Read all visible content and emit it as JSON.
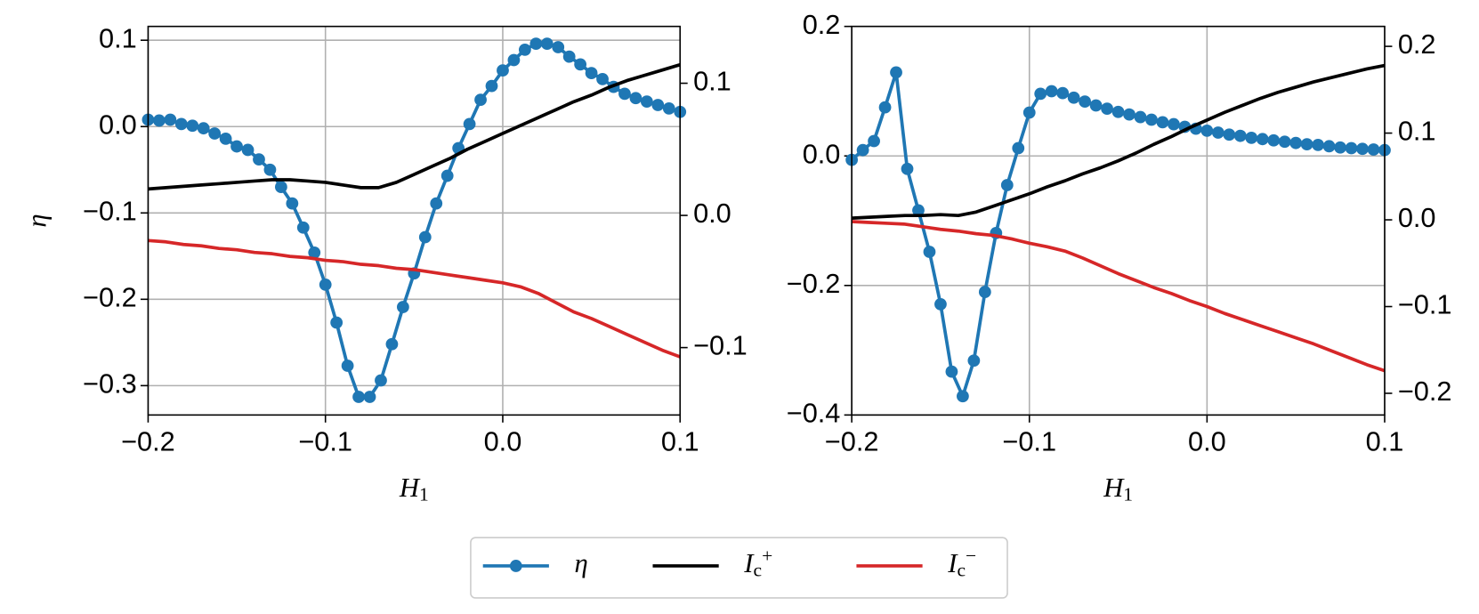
{
  "chart_data": [
    {
      "type": "line",
      "xlabel": "H1",
      "ylabel": "η",
      "xlim": [
        -0.2,
        0.1
      ],
      "ylim": [
        -0.334,
        0.116
      ],
      "y2lim": [
        -0.151,
        0.143
      ],
      "xticks": [
        {
          "value": -0.2,
          "label": "−0.2"
        },
        {
          "value": -0.1,
          "label": "−0.1"
        },
        {
          "value": 0,
          "label": "0.0"
        },
        0.1
      ],
      "yticks": [
        0.1,
        {
          "value": 0,
          "label": "0.0"
        },
        {
          "value": -0.1,
          "label": "−0.1"
        },
        {
          "value": -0.2,
          "label": "−0.2"
        },
        {
          "value": -0.3,
          "label": "−0.3"
        }
      ],
      "y2ticks": [
        0.1,
        {
          "value": 0,
          "label": "0.0"
        },
        {
          "value": -0.1,
          "label": "−0.1"
        }
      ],
      "grid": true,
      "legend": "lower center outside",
      "series": [
        {
          "name": "η",
          "color": "#1f77b4",
          "marker": true,
          "x": [
            -0.2,
            -0.19375,
            -0.1875,
            -0.18125,
            -0.175,
            -0.16875,
            -0.1625,
            -0.15625,
            -0.15,
            -0.14375,
            -0.1375,
            -0.13125,
            -0.125,
            -0.11875,
            -0.1125,
            -0.10625,
            -0.1,
            -0.09375,
            -0.0875,
            -0.08125,
            -0.075,
            -0.06875,
            -0.0625,
            -0.05625,
            -0.05,
            -0.04375,
            -0.0375,
            -0.03125,
            -0.025,
            -0.01875,
            -0.0125,
            -0.00625,
            0,
            0.00625,
            0.0125,
            0.01875,
            0.025,
            0.03125,
            0.0375,
            0.04375,
            0.05,
            0.05625,
            0.0625,
            0.06875,
            0.075,
            0.08125,
            0.0875,
            0.09375,
            0.1
          ],
          "values": [
            0.008,
            0.007,
            0.008,
            0.003,
            0.001,
            -0.002,
            -0.008,
            -0.014,
            -0.023,
            -0.027,
            -0.038,
            -0.05,
            -0.07,
            -0.089,
            -0.117,
            -0.146,
            -0.183,
            -0.227,
            -0.277,
            -0.313,
            -0.313,
            -0.294,
            -0.252,
            -0.209,
            -0.17,
            -0.128,
            -0.089,
            -0.057,
            -0.025,
            0.003,
            0.031,
            0.047,
            0.065,
            0.077,
            0.089,
            0.096,
            0.096,
            0.092,
            0.081,
            0.072,
            0.062,
            0.055,
            0.046,
            0.038,
            0.033,
            0.029,
            0.025,
            0.021,
            0.017
          ]
        },
        {
          "name": "Ic+",
          "color": "#000000",
          "axis": "y2",
          "x": [
            -0.2,
            -0.19,
            -0.18,
            -0.17,
            -0.16,
            -0.15,
            -0.14,
            -0.13,
            -0.12,
            -0.11,
            -0.1,
            -0.09,
            -0.08,
            -0.07,
            -0.06,
            -0.05,
            -0.04,
            -0.03,
            -0.02,
            -0.01,
            0,
            0.01,
            0.02,
            0.03,
            0.04,
            0.05,
            0.06,
            0.07,
            0.08,
            0.09,
            0.1
          ],
          "values": [
            0.02,
            0.021,
            0.022,
            0.023,
            0.024,
            0.025,
            0.026,
            0.027,
            0.027,
            0.026,
            0.025,
            0.023,
            0.021,
            0.021,
            0.025,
            0.031,
            0.037,
            0.043,
            0.05,
            0.056,
            0.062,
            0.068,
            0.074,
            0.08,
            0.086,
            0.091,
            0.097,
            0.102,
            0.106,
            0.11,
            0.114
          ]
        },
        {
          "name": "Ic−",
          "color": "#d62728",
          "axis": "y2",
          "x": [
            -0.2,
            -0.19,
            -0.18,
            -0.17,
            -0.16,
            -0.15,
            -0.14,
            -0.13,
            -0.12,
            -0.11,
            -0.1,
            -0.09,
            -0.08,
            -0.07,
            -0.06,
            -0.05,
            -0.04,
            -0.03,
            -0.02,
            -0.01,
            0,
            0.01,
            0.02,
            0.03,
            0.04,
            0.05,
            0.06,
            0.07,
            0.08,
            0.09,
            0.1
          ],
          "values": [
            -0.019,
            -0.02,
            -0.022,
            -0.023,
            -0.025,
            -0.026,
            -0.028,
            -0.029,
            -0.031,
            -0.032,
            -0.034,
            -0.035,
            -0.037,
            -0.038,
            -0.04,
            -0.041,
            -0.043,
            -0.045,
            -0.047,
            -0.049,
            -0.051,
            -0.054,
            -0.059,
            -0.066,
            -0.073,
            -0.078,
            -0.084,
            -0.09,
            -0.096,
            -0.102,
            -0.107
          ]
        }
      ]
    },
    {
      "type": "line",
      "xlabel": "H1",
      "xlim": [
        -0.2,
        0.1
      ],
      "ylim": [
        -0.4,
        0.2
      ],
      "y2lim": [
        -0.225,
        0.223
      ],
      "xticks": [
        {
          "value": -0.2,
          "label": "−0.2"
        },
        {
          "value": -0.1,
          "label": "−0.1"
        },
        {
          "value": 0,
          "label": "0.0"
        },
        0.1
      ],
      "yticks": [
        0.2,
        {
          "value": 0,
          "label": "0.0"
        },
        {
          "value": -0.2,
          "label": "−0.2"
        },
        {
          "value": -0.4,
          "label": "−0.4"
        }
      ],
      "y2ticks": [
        0.2,
        0.1,
        {
          "value": 0,
          "label": "0.0"
        },
        {
          "value": -0.1,
          "label": "−0.1"
        },
        {
          "value": -0.2,
          "label": "−0.2"
        }
      ],
      "grid": true,
      "series": [
        {
          "color": "#1f77b4",
          "marker": true,
          "x": [
            -0.2,
            -0.19375,
            -0.1875,
            -0.18125,
            -0.175,
            -0.16875,
            -0.1625,
            -0.15625,
            -0.15,
            -0.14375,
            -0.1375,
            -0.13125,
            -0.125,
            -0.11875,
            -0.1125,
            -0.10625,
            -0.1,
            -0.09375,
            -0.0875,
            -0.08125,
            -0.075,
            -0.06875,
            -0.0625,
            -0.05625,
            -0.05,
            -0.04375,
            -0.0375,
            -0.03125,
            -0.025,
            -0.01875,
            -0.0125,
            -0.00625,
            0,
            0.00625,
            0.0125,
            0.01875,
            0.025,
            0.03125,
            0.0375,
            0.04375,
            0.05,
            0.05625,
            0.0625,
            0.06875,
            0.075,
            0.08125,
            0.0875,
            0.09375,
            0.1
          ],
          "values": [
            -0.006,
            0.009,
            0.023,
            0.075,
            0.129,
            -0.02,
            -0.084,
            -0.148,
            -0.229,
            -0.333,
            -0.371,
            -0.316,
            -0.21,
            -0.119,
            -0.045,
            0.012,
            0.067,
            0.096,
            0.1,
            0.097,
            0.09,
            0.084,
            0.078,
            0.073,
            0.068,
            0.064,
            0.06,
            0.056,
            0.052,
            0.049,
            0.045,
            0.042,
            0.039,
            0.036,
            0.033,
            0.031,
            0.028,
            0.026,
            0.024,
            0.022,
            0.02,
            0.018,
            0.017,
            0.015,
            0.013,
            0.012,
            0.011,
            0.01,
            0.009
          ]
        },
        {
          "color": "#000000",
          "axis": "y2",
          "x": [
            -0.2,
            -0.19,
            -0.18,
            -0.17,
            -0.16,
            -0.15,
            -0.14,
            -0.13,
            -0.12,
            -0.11,
            -0.1,
            -0.09,
            -0.08,
            -0.07,
            -0.06,
            -0.05,
            -0.04,
            -0.03,
            -0.02,
            -0.01,
            0,
            0.01,
            0.02,
            0.03,
            0.04,
            0.05,
            0.06,
            0.07,
            0.08,
            0.09,
            0.1
          ],
          "values": [
            0.002,
            0.003,
            0.004,
            0.005,
            0.005,
            0.006,
            0.005,
            0.009,
            0.016,
            0.023,
            0.03,
            0.038,
            0.045,
            0.053,
            0.06,
            0.068,
            0.077,
            0.087,
            0.096,
            0.106,
            0.115,
            0.124,
            0.132,
            0.14,
            0.147,
            0.153,
            0.159,
            0.164,
            0.169,
            0.174,
            0.178
          ]
        },
        {
          "color": "#d62728",
          "axis": "y2",
          "x": [
            -0.2,
            -0.19,
            -0.18,
            -0.17,
            -0.16,
            -0.15,
            -0.14,
            -0.13,
            -0.12,
            -0.11,
            -0.1,
            -0.09,
            -0.08,
            -0.07,
            -0.06,
            -0.05,
            -0.04,
            -0.03,
            -0.02,
            -0.01,
            0,
            0.01,
            0.02,
            0.03,
            0.04,
            0.05,
            0.06,
            0.07,
            0.08,
            0.09,
            0.1
          ],
          "values": [
            -0.002,
            -0.003,
            -0.004,
            -0.005,
            -0.008,
            -0.011,
            -0.013,
            -0.016,
            -0.018,
            -0.022,
            -0.027,
            -0.031,
            -0.036,
            -0.044,
            -0.053,
            -0.062,
            -0.07,
            -0.078,
            -0.085,
            -0.093,
            -0.1,
            -0.108,
            -0.115,
            -0.122,
            -0.129,
            -0.136,
            -0.143,
            -0.151,
            -0.159,
            -0.167,
            -0.174
          ]
        }
      ]
    }
  ]
}
